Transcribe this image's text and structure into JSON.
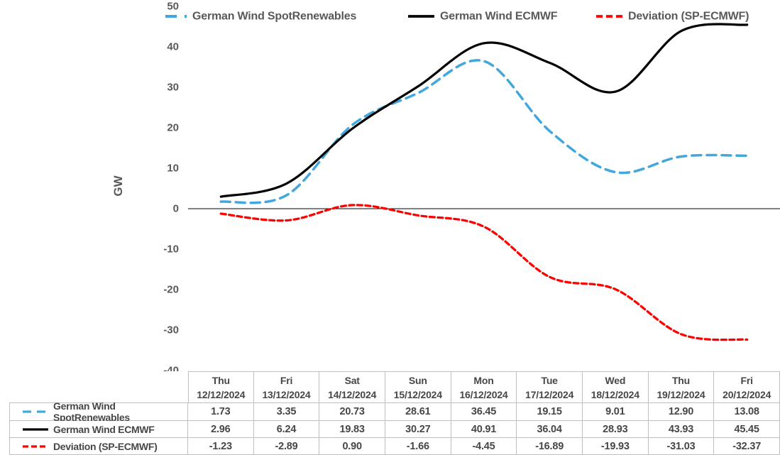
{
  "chart_data": {
    "type": "line",
    "title": "",
    "xlabel": "",
    "ylabel": "GW",
    "ylim": [
      -40,
      50
    ],
    "y_ticks": [
      50,
      40,
      30,
      20,
      10,
      0,
      -10,
      -20,
      -30,
      -40
    ],
    "grid": false,
    "legend_position": "top",
    "categories": [
      "Thu 12/12/2024",
      "Fri 13/12/2024",
      "Sat 14/12/2024",
      "Sun 15/12/2024",
      "Mon 16/12/2024",
      "Tue 17/12/2024",
      "Wed 18/12/2024",
      "Thu 19/12/2024",
      "Fri 20/12/2024"
    ],
    "series": [
      {
        "name": "German Wind SpotRenewables",
        "color": "#41A7DC",
        "line_style": "dashed",
        "values": [
          1.73,
          3.35,
          20.73,
          28.61,
          36.45,
          19.15,
          9.01,
          12.9,
          13.08
        ]
      },
      {
        "name": "German Wind ECMWF",
        "color": "#000000",
        "line_style": "solid",
        "values": [
          2.96,
          6.24,
          19.83,
          30.27,
          40.91,
          36.04,
          28.93,
          43.93,
          45.45
        ]
      },
      {
        "name": "Deviation (SP-ECMWF)",
        "color": "#FF0000",
        "line_style": "dashed",
        "values": [
          -1.23,
          -2.89,
          0.9,
          -1.66,
          -4.45,
          -16.89,
          -19.93,
          -31.03,
          -32.37
        ]
      }
    ]
  },
  "table": {
    "columns": [
      {
        "day": "Thu",
        "date": "12/12/2024"
      },
      {
        "day": "Fri",
        "date": "13/12/2024"
      },
      {
        "day": "Sat",
        "date": "14/12/2024"
      },
      {
        "day": "Sun",
        "date": "15/12/2024"
      },
      {
        "day": "Mon",
        "date": "16/12/2024"
      },
      {
        "day": "Tue",
        "date": "17/12/2024"
      },
      {
        "day": "Wed",
        "date": "18/12/2024"
      },
      {
        "day": "Thu",
        "date": "19/12/2024"
      },
      {
        "day": "Fri",
        "date": "20/12/2024"
      }
    ]
  },
  "colors": {
    "axis_text": "#595959",
    "table_text": "#474747",
    "table_border": "#BFBFBF",
    "zero_line": "#000000"
  }
}
